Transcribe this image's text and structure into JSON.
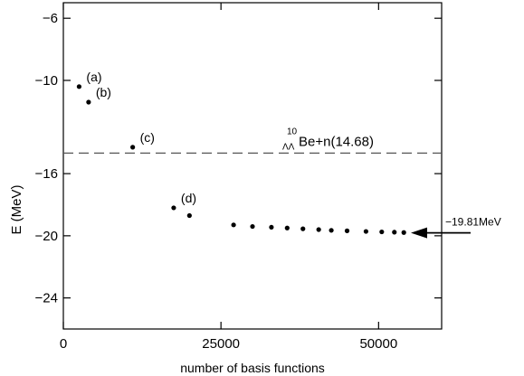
{
  "chart_data": {
    "type": "scatter",
    "xlabel": "number of basis functions",
    "ylabel": "E (MeV)",
    "xlim": [
      0,
      60000
    ],
    "ylim": [
      -26,
      -5
    ],
    "xticks": [
      0,
      25000,
      50000
    ],
    "yticks": [
      -6,
      -10,
      -16,
      -20,
      -24
    ],
    "series": [
      {
        "points": [
          {
            "x": 2500,
            "y": -10.4
          },
          {
            "x": 4000,
            "y": -11.4
          },
          {
            "x": 11000,
            "y": -14.3
          },
          {
            "x": 17500,
            "y": -18.2
          },
          {
            "x": 20000,
            "y": -18.7
          },
          {
            "x": 27000,
            "y": -19.3
          },
          {
            "x": 30000,
            "y": -19.4
          },
          {
            "x": 33000,
            "y": -19.45
          },
          {
            "x": 35500,
            "y": -19.5
          },
          {
            "x": 38000,
            "y": -19.55
          },
          {
            "x": 40500,
            "y": -19.6
          },
          {
            "x": 42500,
            "y": -19.65
          },
          {
            "x": 45000,
            "y": -19.68
          },
          {
            "x": 48000,
            "y": -19.72
          },
          {
            "x": 50500,
            "y": -19.75
          },
          {
            "x": 52500,
            "y": -19.77
          },
          {
            "x": 54000,
            "y": -19.79
          }
        ]
      }
    ],
    "point_labels": [
      {
        "text": "(a)",
        "x": 2500,
        "y": -10.4
      },
      {
        "text": "(b)",
        "x": 4000,
        "y": -11.4
      },
      {
        "text": "(c)",
        "x": 11000,
        "y": -14.3
      },
      {
        "text": "(d)",
        "x": 17500,
        "y": -18.2
      }
    ],
    "threshold": {
      "y": -14.68,
      "style": "dashed",
      "superscript": "10",
      "subscript": "ΛΛ",
      "label": "Be+n(14.68)"
    },
    "arrow_annotation": {
      "text": "−19.81MeV",
      "y": -19.81
    },
    "grid": false
  }
}
